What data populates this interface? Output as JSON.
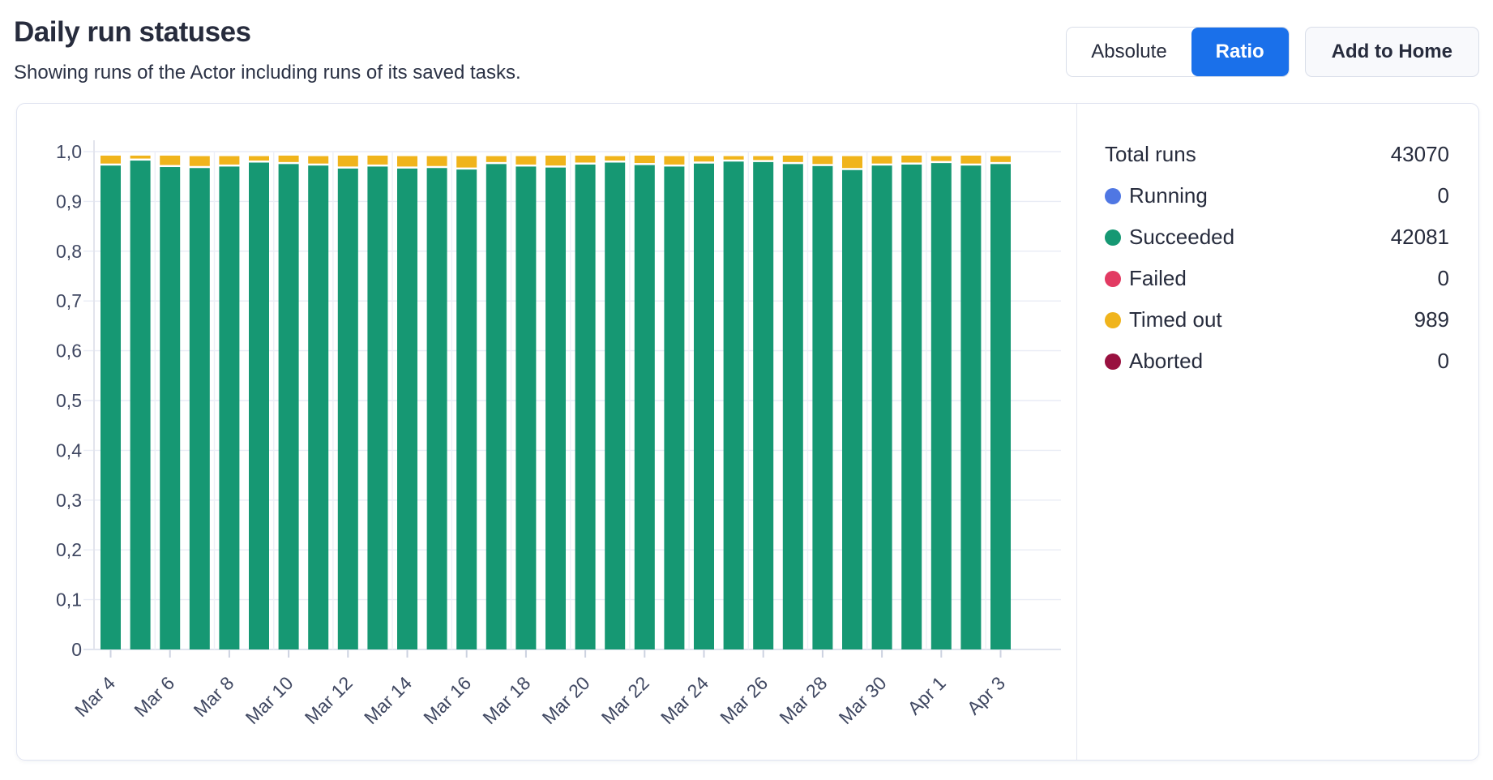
{
  "header": {
    "title": "Daily run statuses",
    "subtitle": "Showing runs of the Actor including runs of its saved tasks.",
    "view_modes": {
      "absolute": "Absolute",
      "ratio": "Ratio",
      "active": "Ratio"
    },
    "add_to_home_label": "Add to Home"
  },
  "legend": {
    "total": {
      "label": "Total runs",
      "value": "43070"
    },
    "items": [
      {
        "label": "Running",
        "value": "0",
        "color": "#4f77e3"
      },
      {
        "label": "Succeeded",
        "value": "42081",
        "color": "#169873"
      },
      {
        "label": "Failed",
        "value": "0",
        "color": "#e23a62"
      },
      {
        "label": "Timed out",
        "value": "989",
        "color": "#f0b41c"
      },
      {
        "label": "Aborted",
        "value": "0",
        "color": "#991140"
      }
    ]
  },
  "chart_data": {
    "type": "bar",
    "stacked": true,
    "title": "Daily run statuses",
    "xlabel": "",
    "ylabel": "",
    "ylim": [
      0,
      1
    ],
    "grid": true,
    "legend_position": "right",
    "x": [
      "Mar 4",
      "Mar 5",
      "Mar 6",
      "Mar 7",
      "Mar 8",
      "Mar 9",
      "Mar 10",
      "Mar 11",
      "Mar 12",
      "Mar 13",
      "Mar 14",
      "Mar 15",
      "Mar 16",
      "Mar 17",
      "Mar 18",
      "Mar 19",
      "Mar 20",
      "Mar 21",
      "Mar 22",
      "Mar 23",
      "Mar 24",
      "Mar 25",
      "Mar 26",
      "Mar 27",
      "Mar 28",
      "Mar 29",
      "Mar 30",
      "Mar 31",
      "Apr 1",
      "Apr 2",
      "Apr 3"
    ],
    "series": [
      {
        "name": "Succeeded",
        "color": "#169873",
        "values": [
          0.972,
          0.982,
          0.969,
          0.967,
          0.97,
          0.978,
          0.975,
          0.972,
          0.966,
          0.97,
          0.966,
          0.967,
          0.964,
          0.975,
          0.97,
          0.968,
          0.974,
          0.978,
          0.973,
          0.97,
          0.976,
          0.98,
          0.979,
          0.975,
          0.971,
          0.963,
          0.972,
          0.974,
          0.977,
          0.972,
          0.975
        ]
      },
      {
        "name": "Timed out",
        "color": "#f0b41c",
        "values": [
          0.02,
          0.01,
          0.023,
          0.024,
          0.021,
          0.013,
          0.017,
          0.019,
          0.026,
          0.022,
          0.025,
          0.024,
          0.027,
          0.016,
          0.021,
          0.024,
          0.018,
          0.013,
          0.019,
          0.021,
          0.015,
          0.011,
          0.012,
          0.017,
          0.02,
          0.028,
          0.019,
          0.018,
          0.014,
          0.02,
          0.016
        ]
      }
    ],
    "y_ticks": [
      0,
      0.1,
      0.2,
      0.3,
      0.4,
      0.5,
      0.6,
      0.7,
      0.8,
      0.9,
      1.0
    ],
    "y_tick_labels": [
      "0",
      "0,1",
      "0,2",
      "0,3",
      "0,4",
      "0,5",
      "0,6",
      "0,7",
      "0,8",
      "0,9",
      "1,0"
    ],
    "x_tick_labels": [
      "Mar 4",
      "Mar 6",
      "Mar 8",
      "Mar 10",
      "Mar 12",
      "Mar 14",
      "Mar 16",
      "Mar 18",
      "Mar 20",
      "Mar 22",
      "Mar 24",
      "Mar 26",
      "Mar 28",
      "Mar 30",
      "Apr 1",
      "Apr 3"
    ],
    "colors": {
      "grid": "#e9ecf5",
      "axis": "#d6dbe8",
      "tick_label": "#3f4761"
    }
  }
}
